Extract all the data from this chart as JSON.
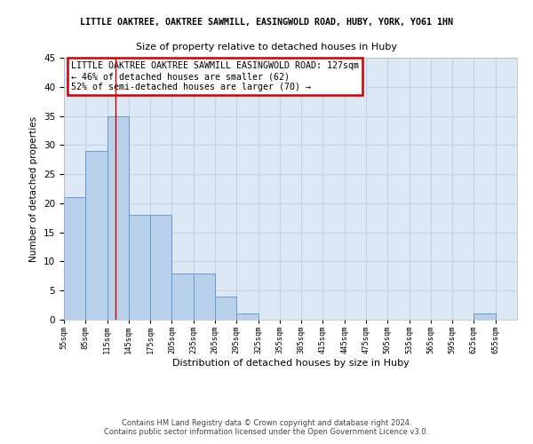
{
  "title1": "LITTLE OAKTREE, OAKTREE SAWMILL, EASINGWOLD ROAD, HUBY, YORK, YO61 1HN",
  "title2": "Size of property relative to detached houses in Huby",
  "xlabel": "Distribution of detached houses by size in Huby",
  "ylabel": "Number of detached properties",
  "footer1": "Contains HM Land Registry data © Crown copyright and database right 2024.",
  "footer2": "Contains public sector information licensed under the Open Government Licence v3.0.",
  "bar_starts": [
    55,
    85,
    115,
    145,
    175,
    205,
    235,
    265,
    295,
    325,
    355,
    385,
    415,
    445,
    475,
    505,
    535,
    565,
    595,
    625,
    655
  ],
  "bar_values": [
    21,
    29,
    35,
    18,
    18,
    8,
    8,
    4,
    1,
    0,
    0,
    0,
    0,
    0,
    0,
    0,
    0,
    0,
    0,
    1,
    0
  ],
  "bar_color": "#b8d0ea",
  "bar_edgecolor": "#6699cc",
  "grid_color": "#c0d4e8",
  "bg_color": "#dce8f4",
  "ref_line_x": 127,
  "ref_line_color": "#cc0000",
  "annotation_line1": "LITTLE OAKTREE OAKTREE SAWMILL EASINGWOLD ROAD: 127sqm",
  "annotation_line2": "← 46% of detached houses are smaller (62)",
  "annotation_line3": "52% of semi-detached houses are larger (70) →",
  "annotation_box_color": "#ffffff",
  "annotation_box_edgecolor": "#cc0000",
  "ylim": [
    0,
    45
  ],
  "yticks": [
    0,
    5,
    10,
    15,
    20,
    25,
    30,
    35,
    40,
    45
  ],
  "bin_width": 30,
  "xlim_left": 55,
  "xlim_right": 685
}
